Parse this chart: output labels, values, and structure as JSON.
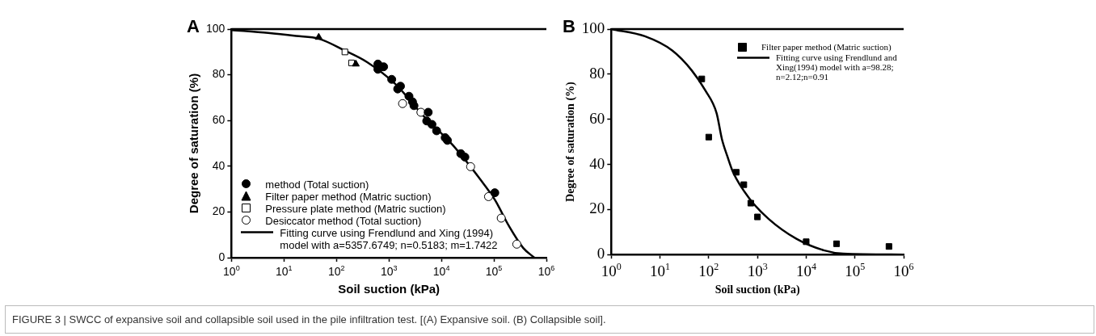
{
  "chart_data": [
    {
      "type": "scatter",
      "title": "A",
      "xlabel": "Soil suction (kPa)",
      "ylabel": "Degree of saturation (%)",
      "log": "x",
      "grid": false,
      "legend": "bottom left",
      "xlim": [
        1,
        1000000
      ],
      "xticks": [
        {
          "value": 1,
          "label": "10$^{0}$"
        },
        {
          "value": 10,
          "label": "10$^{1}$"
        },
        {
          "value": 100,
          "label": "10$^{2}$"
        },
        {
          "value": 1000,
          "label": "10$^{3}$"
        },
        {
          "value": 10000,
          "label": "10$^{4}$"
        },
        {
          "value": 100000,
          "label": "10$^{5}$"
        },
        {
          "value": 1000000,
          "label": "10$^{6}$"
        }
      ],
      "ylim": [
        0,
        100
      ],
      "yticks": [
        0,
        20,
        40,
        60,
        80,
        100
      ],
      "annotations": [
        "FIGURE 3 | SWCC of expansive soil and collapsible soil used in the pile infiltration test. [(A) Expansive soil. (B) Collapsible soil]."
      ],
      "series": [
        {
          "name": "method (Total suction)",
          "type": "scatter",
          "marker": "circle",
          "color": "#000000",
          "x": [
            617,
            617,
            792,
            1130,
            1470,
            1660,
            2410,
            2810,
            3000,
            4600,
            5600,
            5250,
            6600,
            8100,
            11800,
            13000,
            23400,
            28000,
            104000
          ],
          "values": [
            84.7,
            82.4,
            83.5,
            78,
            73.8,
            75,
            70.6,
            68.2,
            66.5,
            null,
            63.6,
            59.8,
            58.3,
            55.5,
            52.5,
            51.3,
            45.5,
            44,
            28.4
          ]
        },
        {
          "name": "Filter paper method (Matric suction)",
          "type": "scatter",
          "marker": "triangle",
          "color": "#000000",
          "x": [
            46,
            234
          ],
          "values": [
            96.4,
            84.7
          ]
        },
        {
          "name": "Pressure plate method (Matric suction)",
          "type": "scatter",
          "marker": "square",
          "color": "#ffffff",
          "x": [
            145,
            194
          ],
          "values": [
            90,
            85.2
          ]
        },
        {
          "name": "Desiccator method (Total suction)",
          "type": "scatter",
          "marker": "circle",
          "color": "#ffffff",
          "x": [
            1820,
            4070,
            36000,
            79000,
            138000,
            273000
          ],
          "values": [
            67.4,
            63.6,
            39.8,
            26.7,
            17.3,
            5.9
          ]
        },
        {
          "name": "Fitting curve using Frendlund and Xing (1994)\nmodel with a=5357.6749; n=0.5183; m=1.7422",
          "type": "line",
          "marker": "none",
          "line_style": "solid",
          "color": "#000000",
          "x": [
            1,
            5,
            17,
            46,
            141,
            380,
            1320,
            4570,
            16200,
            56000,
            105000,
            195000,
            363000,
            590000
          ],
          "values": [
            99.6,
            98.3,
            97,
            95.8,
            90.7,
            85.6,
            76,
            62,
            49.4,
            34,
            25.2,
            13.7,
            4.2,
            0
          ]
        }
      ]
    },
    {
      "type": "scatter",
      "title": "B",
      "xlabel": "Soil suction (kPa)",
      "ylabel": "Degree of saturation (%)",
      "log": "x",
      "grid": false,
      "legend": "top right",
      "xlim": [
        1,
        1000000
      ],
      "xticks": [
        {
          "value": 1,
          "label": "10$^{0}$"
        },
        {
          "value": 10,
          "label": "10$^{1}$"
        },
        {
          "value": 100,
          "label": "10$^{2}$"
        },
        {
          "value": 1000,
          "label": "10$^{3}$"
        },
        {
          "value": 10000,
          "label": "10$^{4}$"
        },
        {
          "value": 100000,
          "label": "10$^{5}$"
        },
        {
          "value": 1000000,
          "label": "10$^{6}$"
        }
      ],
      "ylim": [
        0,
        100
      ],
      "yticks": [
        0,
        20,
        40,
        60,
        80,
        100
      ],
      "series": [
        {
          "name": "Filter paper method (Matric suction)",
          "type": "scatter",
          "marker": "square",
          "color": "#000000",
          "x": [
            72,
            100,
            367,
            525,
            730,
            1000,
            10000,
            42000,
            500000
          ],
          "values": [
            77.9,
            52.1,
            36.5,
            31,
            22.8,
            16.7,
            5.7,
            4.8,
            3.6
          ]
        },
        {
          "name": "Fitting curve using Frendlund and\nXing(1994) model with a=98.28;\nn=2.12;n=0.91",
          "type": "line",
          "marker": "none",
          "line_style": "solid",
          "color": "#000000",
          "x": [
            1,
            4.9,
            17.8,
            44.7,
            85,
            145,
            186,
            240,
            316,
            692,
            1700,
            6300,
            22900,
            57500,
            1000000
          ],
          "values": [
            100,
            96.8,
            90.5,
            81.7,
            72.8,
            62.7,
            51.3,
            43.7,
            36.5,
            24.7,
            15.8,
            7,
            1.9,
            0.4,
            0
          ]
        }
      ]
    }
  ]
}
